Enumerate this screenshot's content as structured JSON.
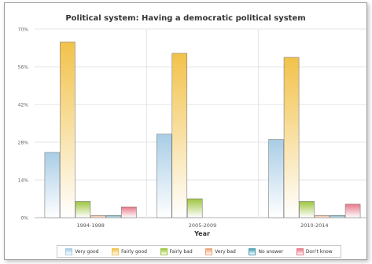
{
  "chart_data": {
    "type": "bar",
    "title": "Political system: Having a democratic political system",
    "xlabel": "Year",
    "ylabel": "",
    "categories": [
      "1994-1998",
      "2005-2009",
      "2010-2014"
    ],
    "ylim": [
      0,
      70
    ],
    "yticks": [
      0,
      14,
      28,
      42,
      56,
      70
    ],
    "ytick_labels": [
      "0%",
      "14%",
      "28%",
      "42%",
      "56%",
      "70%"
    ],
    "grid": true,
    "legend_position": "bottom",
    "series": [
      {
        "name": "Very good",
        "color": "#a8cde6",
        "values": [
          24.2,
          31.0,
          29.0
        ]
      },
      {
        "name": "Fairly good",
        "color": "#f2c24a",
        "values": [
          65.2,
          61.0,
          59.5
        ]
      },
      {
        "name": "Fairly bad",
        "color": "#9ec640",
        "values": [
          6.0,
          7.0,
          6.0
        ]
      },
      {
        "name": "Very bad",
        "color": "#f0a47a",
        "values": [
          0.8,
          0,
          0.8
        ]
      },
      {
        "name": "No answer",
        "color": "#4fa0b4",
        "values": [
          0.8,
          0,
          0.8
        ]
      },
      {
        "name": "Don't know",
        "color": "#e8788a",
        "values": [
          4.0,
          0,
          5.0
        ]
      }
    ]
  }
}
